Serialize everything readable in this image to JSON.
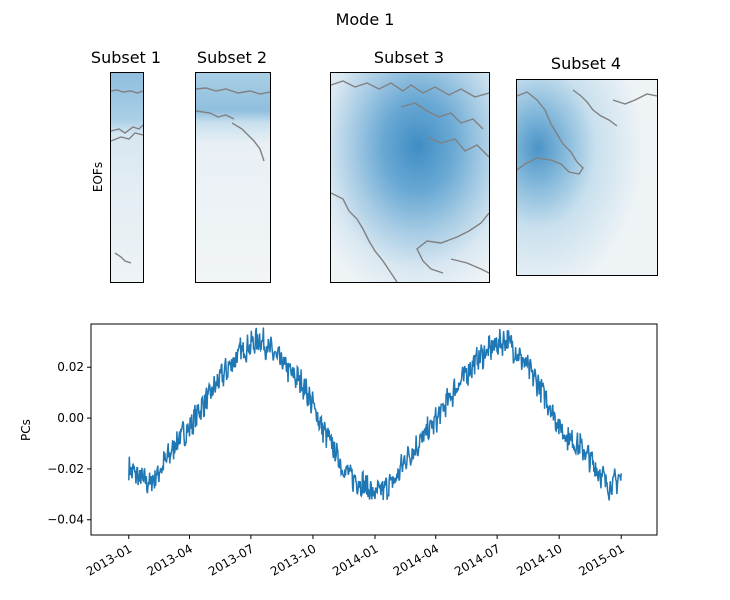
{
  "figure": {
    "title": "Mode 1"
  },
  "eof_panel": {
    "ylabel": "EOFs",
    "subsets": [
      {
        "title": "Subset 1"
      },
      {
        "title": "Subset 2"
      },
      {
        "title": "Subset 3"
      },
      {
        "title": "Subset 4"
      }
    ],
    "colors": {
      "strong": "#4a94c8",
      "medium": "#8fbfde",
      "light": "#c9e0ee",
      "faint": "#eef3f6",
      "coast": "#808080"
    }
  },
  "chart_data": {
    "type": "line",
    "title": "",
    "xlabel": "",
    "ylabel": "PCs",
    "series_color": "#1f77b4",
    "xlim": [
      "2012-11-06",
      "2015-02-23"
    ],
    "ylim": [
      -0.046,
      0.037
    ],
    "xticks": [
      "2013-01",
      "2013-04",
      "2013-07",
      "2013-10",
      "2014-01",
      "2014-04",
      "2014-07",
      "2014-10",
      "2015-01"
    ],
    "yticks": [
      "0.02",
      "0.00",
      "−0.02",
      "−0.04"
    ],
    "ytick_values": [
      0.02,
      0.0,
      -0.02,
      -0.04
    ],
    "grid": false,
    "series": [
      {
        "x": [
          "2013-01-01",
          "2013-01-15",
          "2013-02-01",
          "2013-02-15",
          "2013-03-01",
          "2013-03-15",
          "2013-04-01",
          "2013-04-15",
          "2013-05-01",
          "2013-05-15",
          "2013-06-01",
          "2013-06-15",
          "2013-07-01",
          "2013-07-15",
          "2013-08-01",
          "2013-08-15",
          "2013-09-01",
          "2013-09-15",
          "2013-10-01",
          "2013-10-15",
          "2013-11-01",
          "2013-11-15",
          "2013-12-01",
          "2013-12-15",
          "2014-01-01",
          "2014-01-15",
          "2014-02-01",
          "2014-02-15",
          "2014-03-01",
          "2014-03-15",
          "2014-04-01",
          "2014-04-15",
          "2014-05-01",
          "2014-05-15",
          "2014-06-01",
          "2014-06-15",
          "2014-07-01",
          "2014-07-15",
          "2014-08-01",
          "2014-08-15",
          "2014-09-01",
          "2014-09-15",
          "2014-10-01",
          "2014-10-15",
          "2014-11-01",
          "2014-11-15",
          "2014-12-01",
          "2014-12-15",
          "2015-01-01"
        ],
        "values": [
          -0.02,
          -0.023,
          -0.026,
          -0.021,
          -0.015,
          -0.008,
          -0.004,
          0.003,
          0.009,
          0.015,
          0.021,
          0.026,
          0.029,
          0.031,
          0.026,
          0.022,
          0.017,
          0.014,
          0.005,
          -0.004,
          -0.012,
          -0.02,
          -0.024,
          -0.026,
          -0.03,
          -0.028,
          -0.024,
          -0.016,
          -0.012,
          -0.007,
          -0.001,
          0.005,
          0.012,
          0.017,
          0.023,
          0.026,
          0.029,
          0.031,
          0.025,
          0.02,
          0.013,
          0.006,
          -0.003,
          -0.008,
          -0.011,
          -0.016,
          -0.022,
          -0.027,
          -0.023
        ]
      }
    ]
  }
}
